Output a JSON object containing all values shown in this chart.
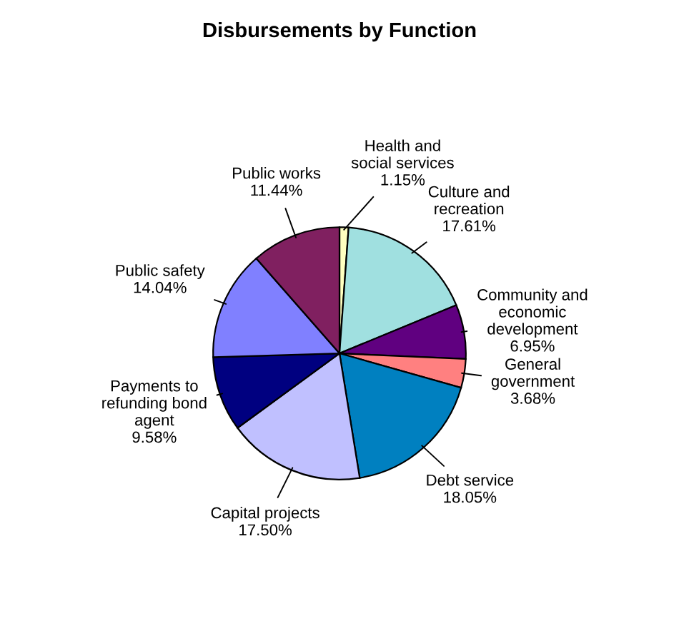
{
  "chart_data": {
    "type": "pie",
    "title": "Disbursements by Function",
    "categories": [
      "Health and\nsocial services",
      "Culture and\nrecreation",
      "Community and\neconomic\ndevelopment",
      "General\ngovernment",
      "Debt service",
      "Capital projects",
      "Payments to\nrefunding bond\nagent",
      "Public safety",
      "Public works"
    ],
    "values": [
      1.15,
      17.61,
      6.95,
      3.68,
      18.05,
      17.5,
      9.58,
      14.04,
      11.44
    ],
    "value_labels": [
      "1.15%",
      "17.61%",
      "6.95%",
      "3.68%",
      "18.05%",
      "17.50%",
      "9.58%",
      "14.04%",
      "11.44%"
    ],
    "colors": [
      "#ffffc0",
      "#a0e0e0",
      "#600080",
      "#ff8080",
      "#0080c0",
      "#c0c0ff",
      "#000080",
      "#8080ff",
      "#802060"
    ],
    "legend": false
  }
}
